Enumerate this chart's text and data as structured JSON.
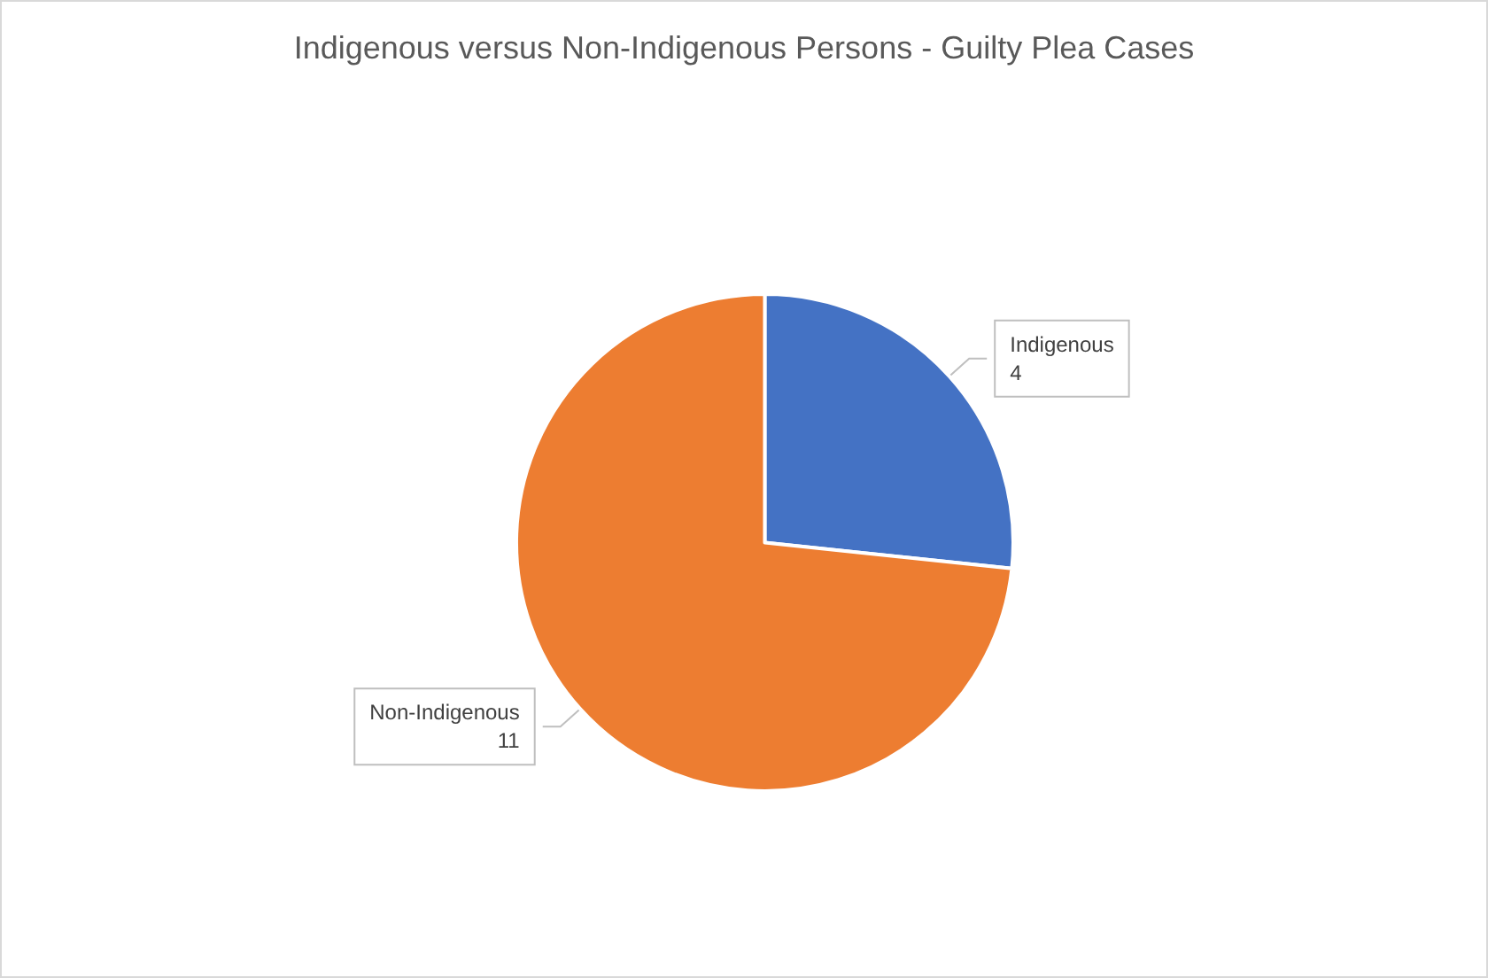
{
  "chart_data": {
    "type": "pie",
    "title": "Indigenous versus Non-Indigenous Persons - Guilty Plea Cases",
    "categories": [
      "Indigenous",
      "Non-Indigenous"
    ],
    "values": [
      4,
      11
    ],
    "colors": [
      "#4472c4",
      "#ed7d31"
    ],
    "data_labels": true,
    "legend": false
  }
}
